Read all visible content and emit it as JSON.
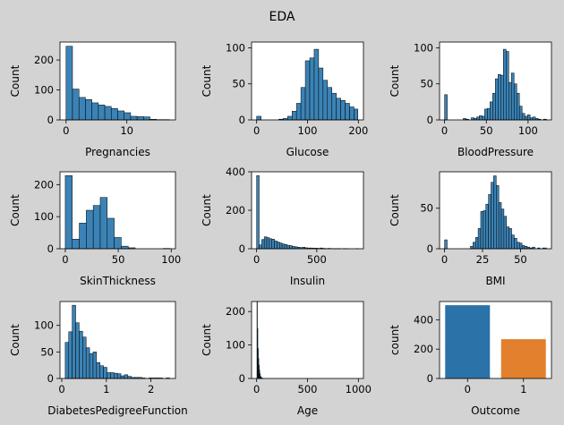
{
  "figure": {
    "title": "EDA"
  },
  "colors": {
    "figure_bg": "#d3d3d3",
    "axes_bg": "#ffffff",
    "hist": "#3b83b6",
    "edge": "#000000",
    "outcome0": "#2a72a8",
    "outcome1": "#e2802d"
  },
  "chart_data": [
    {
      "type": "bar",
      "subtype": "histogram",
      "xlabel": "Pregnancies",
      "ylabel": "Count",
      "xlim": [
        -1,
        18
      ],
      "ylim": [
        0,
        260
      ],
      "xticks": [
        0,
        10
      ],
      "yticks": [
        0,
        100,
        200
      ],
      "bin_edges": [
        0,
        1.0625,
        2.125,
        3.1875,
        4.25,
        5.3125,
        6.375,
        7.4375,
        8.5,
        9.5625,
        10.625,
        11.6875,
        12.75,
        13.8125,
        14.875,
        15.9375,
        17
      ],
      "counts": [
        246,
        103,
        75,
        68,
        57,
        50,
        45,
        38,
        30,
        24,
        12,
        11,
        10,
        2,
        1,
        1
      ]
    },
    {
      "type": "bar",
      "subtype": "histogram",
      "xlabel": "Glucose",
      "ylabel": "Count",
      "xlim": [
        -10,
        210
      ],
      "ylim": [
        0,
        108
      ],
      "xticks": [
        0,
        100,
        200
      ],
      "yticks": [
        0,
        50,
        100
      ],
      "bin_edges": [
        0,
        8.7,
        17.4,
        26.1,
        34.8,
        43.5,
        52.2,
        60.9,
        69.6,
        78.3,
        87,
        95.7,
        104.4,
        113.1,
        121.8,
        130.5,
        139.2,
        147.9,
        156.6,
        165.3,
        174,
        182.7,
        191.4,
        199
      ],
      "counts": [
        5,
        0,
        0,
        0,
        0,
        1,
        2,
        5,
        12,
        23,
        45,
        82,
        86,
        98,
        72,
        55,
        45,
        37,
        30,
        27,
        23,
        18,
        15
      ]
    },
    {
      "type": "bar",
      "subtype": "histogram",
      "xlabel": "BloodPressure",
      "ylabel": "Count",
      "xlim": [
        -6,
        128
      ],
      "ylim": [
        0,
        108
      ],
      "xticks": [
        0,
        50,
        100
      ],
      "yticks": [
        0,
        50,
        100
      ],
      "bin_edges": [
        0,
        3.2,
        6.4,
        9.6,
        12.8,
        16,
        19.2,
        22.4,
        25.6,
        28.8,
        32,
        35.2,
        38.4,
        41.6,
        44.8,
        48,
        51.2,
        54.4,
        57.6,
        60.8,
        64,
        67.2,
        70.4,
        73.6,
        76.8,
        80,
        83.2,
        86.4,
        89.6,
        92.8,
        96,
        99.2,
        102.4,
        105.6,
        108.8,
        112,
        115.2,
        118.4,
        122
      ],
      "counts": [
        35,
        0,
        0,
        0,
        0,
        0,
        0,
        2,
        1,
        0,
        3,
        2,
        4,
        6,
        5,
        15,
        16,
        25,
        37,
        57,
        63,
        62,
        98,
        95,
        52,
        65,
        50,
        37,
        19,
        9,
        5,
        7,
        3,
        4,
        2,
        1,
        0,
        1
      ]
    },
    {
      "type": "bar",
      "subtype": "histogram",
      "xlabel": "SkinThickness",
      "ylabel": "Count",
      "xlim": [
        -5,
        104
      ],
      "ylim": [
        0,
        240
      ],
      "xticks": [
        0,
        50,
        100
      ],
      "yticks": [
        0,
        100,
        200
      ],
      "bin_edges": [
        0,
        6.6,
        13.2,
        19.8,
        26.4,
        33,
        39.6,
        46.2,
        52.8,
        59.4,
        66,
        72.6,
        79.2,
        85.8,
        92.4,
        99
      ],
      "counts": [
        228,
        30,
        80,
        120,
        135,
        160,
        95,
        35,
        8,
        3,
        0,
        0,
        0,
        0,
        1
      ]
    },
    {
      "type": "bar",
      "subtype": "histogram",
      "xlabel": "Insulin",
      "ylabel": "Count",
      "xlim": [
        -42,
        888
      ],
      "ylim": [
        0,
        400
      ],
      "xticks": [
        0,
        500
      ],
      "yticks": [
        0,
        200,
        400
      ],
      "bin_edges": [
        0,
        21.15,
        42.3,
        63.45,
        84.6,
        105.75,
        126.9,
        148.05,
        169.2,
        190.35,
        211.5,
        232.65,
        253.8,
        274.95,
        296.1,
        317.25,
        338.4,
        359.55,
        380.7,
        401.85,
        423,
        444.15,
        465.3,
        486.45,
        507.6,
        528.75,
        549.9,
        571.05,
        592.2,
        613.35,
        634.5,
        655.65,
        676.8,
        697.95,
        719.1,
        740.25,
        761.4,
        782.55,
        803.7,
        824.85,
        846
      ],
      "counts": [
        380,
        20,
        48,
        62,
        58,
        52,
        50,
        41,
        35,
        30,
        25,
        22,
        18,
        16,
        12,
        10,
        8,
        6,
        8,
        5,
        4,
        4,
        3,
        3,
        2,
        4,
        2,
        1,
        2,
        1,
        1,
        1,
        1,
        0,
        1,
        1,
        0,
        0,
        0,
        1
      ]
    },
    {
      "type": "bar",
      "subtype": "histogram",
      "xlabel": "BMI",
      "ylabel": "Count",
      "xlim": [
        -3.3,
        70.4
      ],
      "ylim": [
        0,
        95
      ],
      "xticks": [
        0,
        25,
        50
      ],
      "yticks": [
        0,
        50
      ],
      "bin_edges": [
        0,
        1.7,
        3.4,
        5.1,
        6.8,
        8.5,
        10.2,
        11.9,
        13.6,
        15.3,
        17,
        18.7,
        20.4,
        22.1,
        23.8,
        25.5,
        27.2,
        28.9,
        30.6,
        32.3,
        34,
        35.7,
        37.4,
        39.1,
        40.8,
        42.5,
        44.2,
        45.9,
        47.6,
        49.3,
        51,
        52.7,
        54.4,
        56.1,
        57.8,
        59.5,
        61.2,
        62.9,
        64.6,
        67.1
      ],
      "counts": [
        11,
        0,
        0,
        0,
        0,
        0,
        0,
        0,
        0,
        0,
        3,
        8,
        14,
        25,
        46,
        47,
        55,
        67,
        82,
        90,
        78,
        57,
        49,
        40,
        27,
        25,
        17,
        13,
        8,
        7,
        4,
        3,
        2,
        1,
        2,
        0,
        1,
        0,
        1
      ]
    },
    {
      "type": "bar",
      "subtype": "histogram",
      "xlabel": "DiabetesPedigreeFunction",
      "ylabel": "Count",
      "xlim": [
        -0.04,
        2.55
      ],
      "ylim": [
        0,
        145
      ],
      "xticks": [
        0,
        1,
        2
      ],
      "yticks": [
        0,
        50,
        100
      ],
      "bin_edges": [
        0.078,
        0.156,
        0.234,
        0.312,
        0.39,
        0.468,
        0.546,
        0.624,
        0.702,
        0.78,
        0.858,
        0.936,
        1.014,
        1.092,
        1.17,
        1.248,
        1.326,
        1.404,
        1.482,
        1.56,
        1.638,
        1.716,
        1.794,
        1.872,
        1.95,
        2.028,
        2.106,
        2.184,
        2.262,
        2.34,
        2.42
      ],
      "counts": [
        68,
        88,
        138,
        105,
        89,
        78,
        58,
        47,
        50,
        30,
        24,
        21,
        11,
        11,
        10,
        9,
        5,
        7,
        4,
        2,
        2,
        2,
        1,
        0,
        1,
        1,
        1,
        1,
        0,
        1
      ]
    },
    {
      "type": "bar",
      "subtype": "histogram",
      "xlabel": "Age",
      "ylabel": "Count",
      "xlim": [
        -50,
        1050
      ],
      "ylim": [
        0,
        230
      ],
      "xticks": [
        0,
        500,
        1000
      ],
      "yticks": [
        0,
        100,
        200
      ],
      "bin_edges": [
        3,
        7.5,
        12,
        16.5,
        21,
        25.5,
        30,
        34.5,
        39,
        43.5,
        48,
        52.5,
        57,
        61.5,
        66,
        70.5,
        75,
        79.5,
        84,
        88.5,
        93,
        97.5,
        102,
        106.5,
        111,
        115.5,
        120,
        124.5,
        129,
        133.5,
        138
      ],
      "counts": [
        230,
        150,
        90,
        60,
        40,
        25,
        15,
        8,
        5,
        3,
        2,
        1,
        1,
        0,
        0,
        0,
        0,
        0,
        0,
        0,
        0,
        0,
        0,
        0,
        0,
        0,
        0,
        0,
        0,
        0
      ]
    },
    {
      "type": "bar",
      "xlabel": "Outcome",
      "ylabel": "count",
      "categories": [
        "0",
        "1"
      ],
      "values": [
        500,
        268
      ],
      "ylim": [
        0,
        525
      ],
      "yticks": [
        0,
        200,
        400
      ]
    }
  ]
}
